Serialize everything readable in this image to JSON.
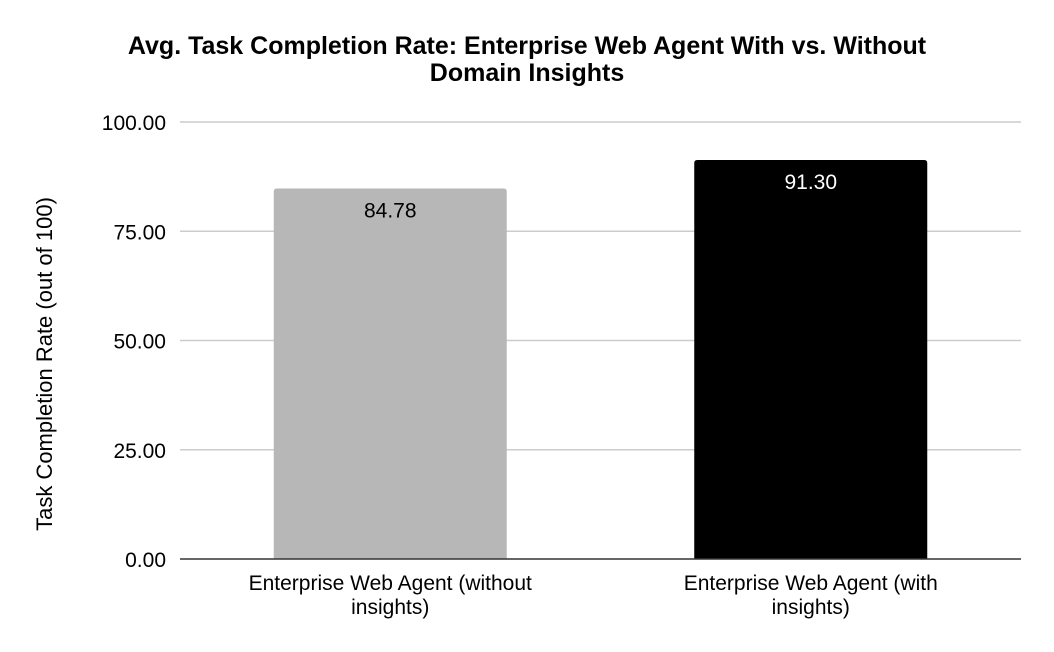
{
  "chart_data": {
    "type": "bar",
    "title": "Avg. Task Completion Rate: Enterprise Web Agent With vs. Without Domain Insights",
    "title_lines": [
      "Avg. Task Completion Rate: Enterprise Web Agent With vs. Without",
      "Domain Insights"
    ],
    "xlabel": "",
    "ylabel": "Task Completion Rate (out of 100)",
    "ylim": [
      0,
      100
    ],
    "yticks": [
      0,
      25,
      50,
      75,
      100
    ],
    "ytick_labels": [
      "0.00",
      "25.00",
      "50.00",
      "75.00",
      "100.00"
    ],
    "grid": true,
    "legend": "none",
    "categories": [
      "Enterprise Web Agent (without insights)",
      "Enterprise Web Agent (with insights)"
    ],
    "category_label_lines": [
      [
        "Enterprise Web Agent (without",
        "insights)"
      ],
      [
        "Enterprise Web Agent (with",
        "insights)"
      ]
    ],
    "values": [
      84.78,
      91.3
    ],
    "data_labels": [
      "84.78",
      "91.30"
    ],
    "colors": [
      "#b7b7b7",
      "#000000"
    ],
    "data_label_colors": [
      "#000000",
      "#ffffff"
    ],
    "gridline_color": "#cccccc",
    "axis_color": "#333333"
  }
}
